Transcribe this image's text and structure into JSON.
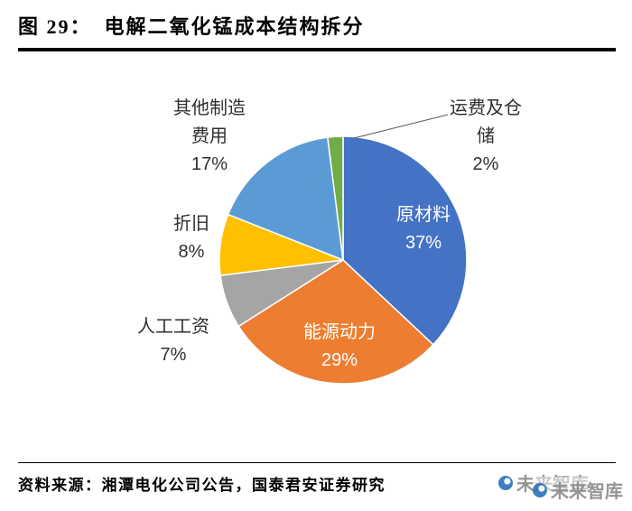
{
  "figure": {
    "label": "图 29：",
    "title": "电解二氧化锰成本结构拆分"
  },
  "chart_data": {
    "type": "pie",
    "title": "电解二氧化锰成本结构拆分",
    "start_angle_deg": -90,
    "direction": "clockwise",
    "legend": "none",
    "slices": [
      {
        "label": "原材料",
        "value": 37,
        "percent_label": "37%",
        "color": "#4472C4",
        "label_placement": "inside"
      },
      {
        "label": "能源动力",
        "value": 29,
        "percent_label": "29%",
        "color": "#ED7D31",
        "label_placement": "inside"
      },
      {
        "label": "人工工资",
        "value": 7,
        "percent_label": "7%",
        "color": "#A5A5A5",
        "label_placement": "outside"
      },
      {
        "label": "折旧",
        "value": 8,
        "percent_label": "8%",
        "color": "#FFC000",
        "label_placement": "outside"
      },
      {
        "label": "其他制造费用",
        "value": 17,
        "percent_label": "17%",
        "color": "#5B9BD5",
        "label_placement": "outside"
      },
      {
        "label": "运费及仓储",
        "value": 2,
        "percent_label": "2%",
        "color": "#70AD47",
        "label_placement": "outside"
      }
    ]
  },
  "source": {
    "text": "资料来源：湘潭电化公司公告，国泰君安证券研究"
  },
  "watermark": {
    "text": "未来智库"
  }
}
